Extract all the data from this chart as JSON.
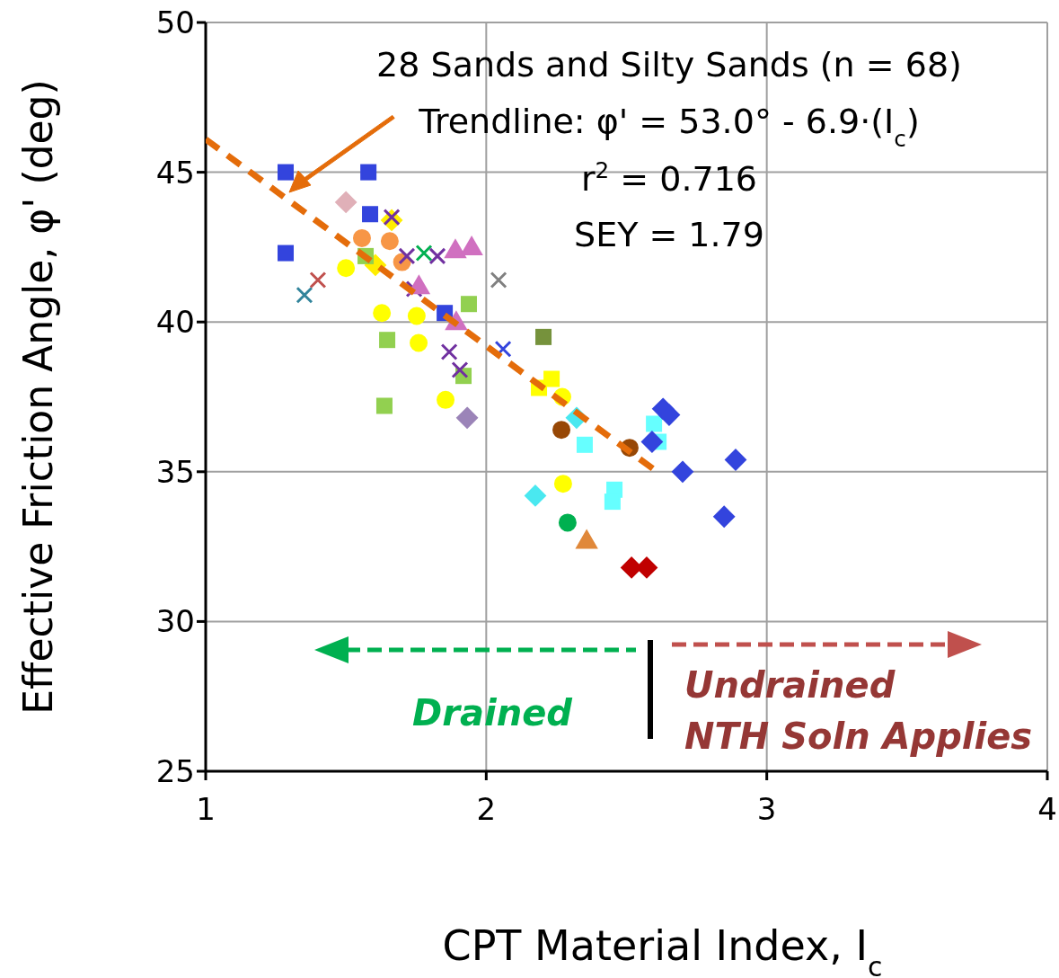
{
  "chart_data": {
    "type": "scatter",
    "xlabel": "CPT Material Index, I$_{c}$",
    "ylabel": "Effective Friction Angle, φ' (deg)",
    "xlim": [
      1,
      4
    ],
    "xticks": [
      1,
      2,
      3,
      4
    ],
    "ylim": [
      25,
      50
    ],
    "yticks": [
      25,
      30,
      35,
      40,
      45,
      50
    ],
    "grid": true,
    "annotations": [
      "28 Sands and Silty Sands (n = 68)",
      "Trendline: φ' = 53.0° - 6.9·(I$_{c}$)",
      "r$^{2}$ = 0.716",
      "SEY = 1.79",
      "Drained",
      "Undrained",
      "NTH Soln Applies"
    ],
    "series": [
      {
        "color": "#3344dd",
        "marker": "square",
        "x": [
          1.285,
          1.58,
          1.586,
          1.285,
          1.852
        ],
        "values": [
          45.0,
          45.0,
          43.6,
          42.3,
          40.3
        ]
      },
      {
        "color": "#e0b0b8",
        "marker": "diamond",
        "x": [
          1.5
        ],
        "values": [
          44.0
        ]
      },
      {
        "color": "#ffee00",
        "marker": "diamond",
        "x": [
          1.663,
          1.605
        ],
        "values": [
          43.4,
          41.9
        ]
      },
      {
        "color": "#f79646",
        "marker": "circle",
        "x": [
          1.557,
          1.656,
          1.7
        ],
        "values": [
          42.8,
          42.7,
          42.0
        ]
      },
      {
        "color": "#ffff00",
        "marker": "circle",
        "x": [
          1.5,
          1.628,
          1.752,
          1.759,
          1.855,
          2.271,
          2.274
        ],
        "values": [
          41.8,
          40.3,
          40.2,
          39.3,
          37.4,
          37.5,
          34.6
        ]
      },
      {
        "color": "#ffff00",
        "marker": "square",
        "x": [
          2.188,
          2.233
        ],
        "values": [
          37.8,
          38.1
        ]
      },
      {
        "color": "#974806",
        "marker": "circle",
        "x": [
          2.268,
          2.511
        ],
        "values": [
          36.4,
          35.8
        ]
      },
      {
        "color": "#92d050",
        "marker": "square",
        "x": [
          1.57,
          1.647,
          1.938,
          1.919,
          1.637
        ],
        "values": [
          42.2,
          39.4,
          40.6,
          38.2,
          37.2
        ]
      },
      {
        "color": "#00b050",
        "marker": "cross",
        "x": [
          1.778
        ],
        "values": [
          42.3
        ]
      },
      {
        "color": "#7030a0",
        "marker": "cross",
        "x": [
          1.663,
          1.717,
          1.826,
          1.743,
          1.868,
          1.906
        ],
        "values": [
          43.5,
          42.2,
          42.2,
          41.1,
          39.0,
          38.4
        ]
      },
      {
        "color": "#9b84b8",
        "marker": "diamond",
        "x": [
          1.932
        ],
        "values": [
          36.8
        ]
      },
      {
        "color": "#d070c0",
        "marker": "triangle",
        "x": [
          1.89,
          1.948,
          1.76,
          1.893
        ],
        "values": [
          42.4,
          42.5,
          41.2,
          40.0
        ]
      },
      {
        "color": "#808080",
        "marker": "cross",
        "x": [
          2.044
        ],
        "values": [
          41.4
        ]
      },
      {
        "color": "#3344dd",
        "marker": "cross",
        "x": [
          2.06
        ],
        "values": [
          39.1
        ]
      },
      {
        "color": "#31849b",
        "marker": "cross",
        "x": [
          1.352
        ],
        "values": [
          40.9
        ]
      },
      {
        "color": "#c0504d",
        "marker": "cross",
        "x": [
          1.4
        ],
        "values": [
          41.4
        ]
      },
      {
        "color": "#76923c",
        "marker": "square",
        "x": [
          2.204
        ],
        "values": [
          39.5
        ]
      },
      {
        "color": "#4ae8f0",
        "marker": "diamond",
        "x": [
          2.322,
          2.175
        ],
        "values": [
          36.8,
          34.2
        ]
      },
      {
        "color": "#66ffff",
        "marker": "square",
        "x": [
          2.598,
          2.614,
          2.351,
          2.457,
          2.45
        ],
        "values": [
          36.6,
          36.0,
          35.9,
          34.4,
          34.0
        ]
      },
      {
        "color": "#3344dd",
        "marker": "diamond",
        "x": [
          2.63,
          2.652,
          2.591,
          2.7,
          2.889,
          2.848
        ],
        "values": [
          37.1,
          36.9,
          36.0,
          35.0,
          35.4,
          33.5
        ]
      },
      {
        "color": "#00b050",
        "marker": "circle",
        "x": [
          2.29
        ],
        "values": [
          33.3
        ]
      },
      {
        "color": "#e0883a",
        "marker": "triangle",
        "x": [
          2.358
        ],
        "values": [
          32.7
        ]
      },
      {
        "color": "#c00000",
        "marker": "diamond",
        "x": [
          2.518,
          2.572
        ],
        "values": [
          31.8,
          31.8
        ]
      },
      {
        "type": "line",
        "color": "#e46c0a",
        "line_style": "dashed",
        "marker": "none",
        "x": [
          1,
          2.6
        ],
        "values": [
          46.1,
          35.06
        ]
      }
    ]
  }
}
